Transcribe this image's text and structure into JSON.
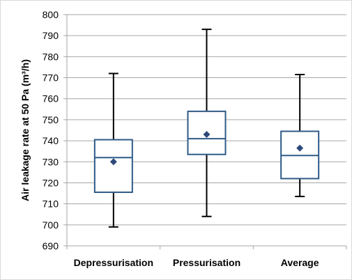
{
  "chart_data": {
    "type": "boxplot",
    "ylabel": "Air leakage rate at 50 Pa (m³/h)",
    "ylim": [
      690,
      800
    ],
    "ytick_step": 10,
    "grid": true,
    "categories": [
      "Depressurisation",
      "Pressurisation",
      "Average"
    ],
    "boxes": [
      {
        "whisker_low": 699,
        "q1": 715.5,
        "median": 732,
        "q3": 740.5,
        "whisker_high": 772,
        "mean": 730
      },
      {
        "whisker_low": 704,
        "q1": 733.5,
        "median": 741,
        "q3": 754,
        "whisker_high": 793,
        "mean": 743
      },
      {
        "whisker_low": 713.5,
        "q1": 722,
        "median": 733,
        "q3": 744.5,
        "whisker_high": 771.5,
        "mean": 736.5
      }
    ],
    "colors": {
      "box": "#2e5a87",
      "mean_marker": "#2e4a7a",
      "whisker": "#000000",
      "grid": "#a6a6a6",
      "axis": "#a6a6a6"
    }
  }
}
